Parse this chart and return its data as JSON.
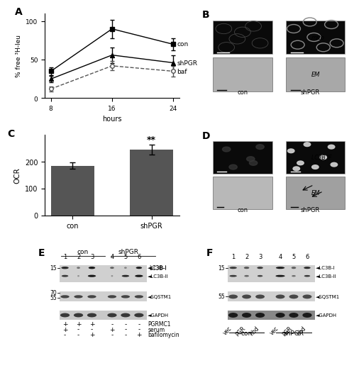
{
  "panel_A": {
    "hours": [
      8,
      16,
      24
    ],
    "con_values": [
      35,
      90,
      70
    ],
    "con_errors": [
      5,
      12,
      8
    ],
    "shPGR_values": [
      25,
      56,
      46
    ],
    "shPGR_errors": [
      4,
      10,
      10
    ],
    "baf_values": [
      12,
      42,
      35
    ],
    "baf_errors": [
      3,
      6,
      7
    ],
    "ylabel": "% free ³H-leu",
    "xlabel": "hours",
    "ylim": [
      0,
      110
    ],
    "yticks": [
      0,
      50,
      100
    ],
    "xticks": [
      8,
      16,
      24
    ],
    "label_A": "A"
  },
  "panel_C": {
    "categories": [
      "con",
      "shPGR"
    ],
    "values": [
      185,
      245
    ],
    "errors": [
      12,
      18
    ],
    "bar_color": "#555555",
    "ylabel": "OCR",
    "ylim": [
      0,
      300
    ],
    "yticks": [
      0,
      100,
      200
    ],
    "significance": "**",
    "label_C": "C"
  },
  "panel_B_label": "B",
  "panel_D_label": "D",
  "panel_E_label": "E",
  "panel_F_label": "F",
  "figure_bg": "#ffffff",
  "blot_bg": "#d8d8d8",
  "blot_dark": "#222222",
  "blot_mid": "#888888"
}
